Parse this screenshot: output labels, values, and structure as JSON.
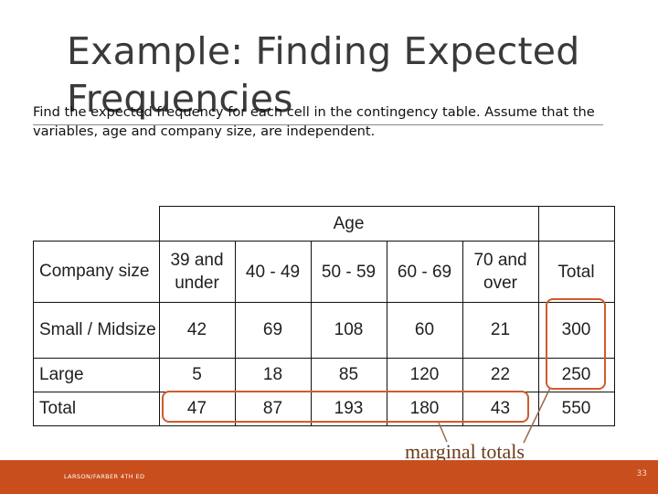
{
  "slide": {
    "title_line1": "Example: Finding Expected",
    "title_line2": "Frequencies",
    "intro": "Find the expected frequency for each cell in the contingency table. Assume that the variables, age and company size, are independent.",
    "marginal_label": "marginal totals",
    "footer_left": "LARSON/FARBER 4TH ED",
    "footer_page": "33"
  },
  "table": {
    "age_header": "Age",
    "row_header": "Company size",
    "columns": [
      "39 and under",
      "40 - 49",
      "50 - 59",
      "60 - 69",
      "70 and over",
      "Total"
    ],
    "rows": [
      {
        "label": "Small / Midsize",
        "values": [
          "42",
          "69",
          "108",
          "60",
          "21",
          "300"
        ]
      },
      {
        "label": "Large",
        "values": [
          "5",
          "18",
          "85",
          "120",
          "22",
          "250"
        ]
      },
      {
        "label": "Total",
        "values": [
          "47",
          "87",
          "193",
          "180",
          "43",
          "550"
        ]
      }
    ]
  },
  "colors": {
    "accent": "#c94e1d",
    "highlight_outline": "#d25a2b"
  }
}
